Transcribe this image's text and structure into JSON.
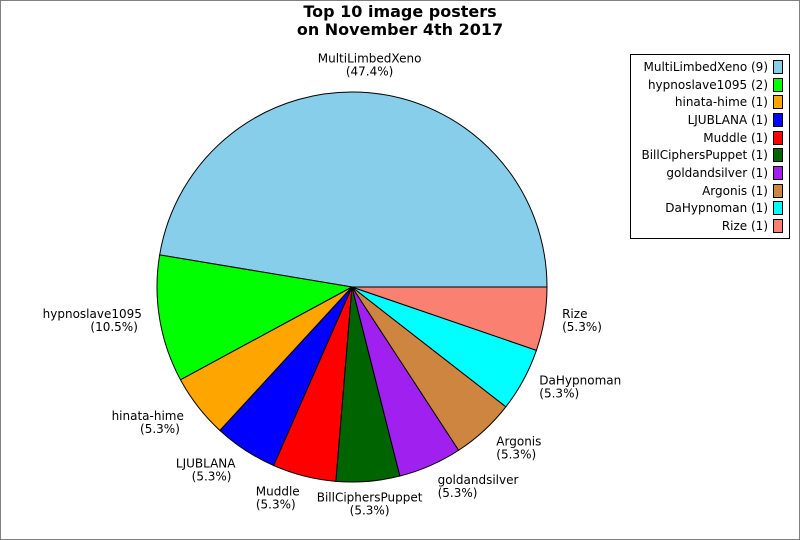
{
  "chart_data": {
    "type": "pie",
    "title_lines": [
      "Top 10 image posters",
      "on November 4th 2017"
    ],
    "start_angle_deg": 0,
    "direction": "counterclockwise",
    "slices": [
      {
        "label": "MultiLimbedXeno",
        "value": 9,
        "percent": "47.4%",
        "legend": "MultiLimbedXeno (9)",
        "color": "#87ceeb"
      },
      {
        "label": "hypnoslave1095",
        "value": 2,
        "percent": "10.5%",
        "legend": "hypnoslave1095 (2)",
        "color": "#00ff00"
      },
      {
        "label": "hinata-hime",
        "value": 1,
        "percent": "5.3%",
        "legend": "hinata-hime (1)",
        "color": "#ffa500"
      },
      {
        "label": "LJUBLANA",
        "value": 1,
        "percent": "5.3%",
        "legend": "LJUBLANA (1)",
        "color": "#0000ff"
      },
      {
        "label": "Muddle",
        "value": 1,
        "percent": "5.3%",
        "legend": "Muddle (1)",
        "color": "#ff0000"
      },
      {
        "label": "BillCiphersPuppet",
        "value": 1,
        "percent": "5.3%",
        "legend": "BillCiphersPuppet (1)",
        "color": "#006400"
      },
      {
        "label": "goldandsilver",
        "value": 1,
        "percent": "5.3%",
        "legend": "goldandsilver (1)",
        "color": "#a020f0"
      },
      {
        "label": "Argonis",
        "value": 1,
        "percent": "5.3%",
        "legend": "Argonis (1)",
        "color": "#cd853f"
      },
      {
        "label": "DaHypnoman",
        "value": 1,
        "percent": "5.3%",
        "legend": "DaHypnoman (1)",
        "color": "#00ffff"
      },
      {
        "label": "Rize",
        "value": 1,
        "percent": "5.3%",
        "legend": "Rize (1)",
        "color": "#fa8072"
      }
    ]
  }
}
